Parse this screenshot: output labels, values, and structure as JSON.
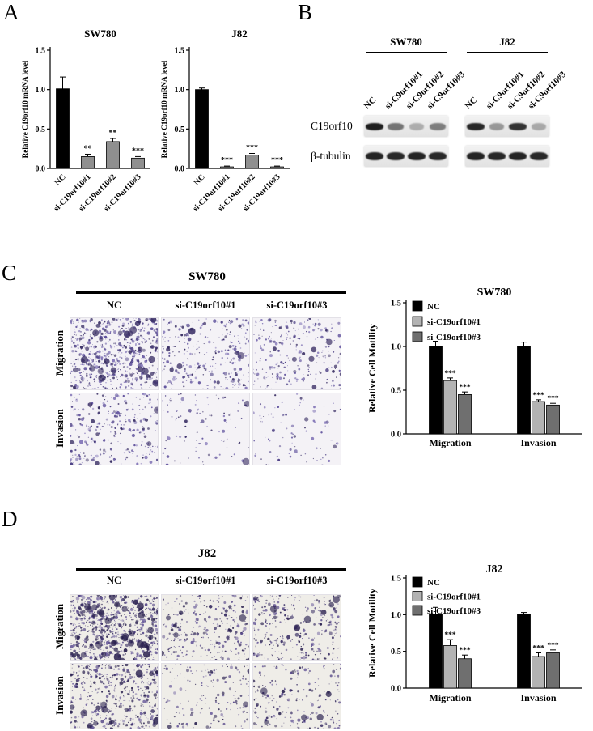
{
  "panels": {
    "A": {
      "label": "A"
    },
    "B": {
      "label": "B",
      "groups": [
        {
          "title": "SW780",
          "lanes": [
            "NC",
            "si-C9orf10#1",
            "si-C9orf10#2",
            "si-C9orf10#3"
          ]
        },
        {
          "title": "J82",
          "lanes": [
            "NC",
            "si-C9orf10#1",
            "si-C9orf10#2",
            "si-C9orf10#3"
          ]
        }
      ],
      "rows": [
        {
          "label": "C19orf10",
          "bands": [
            [
              0.95,
              0.55,
              0.28,
              0.5
            ],
            [
              0.9,
              0.38,
              0.85,
              0.3
            ]
          ]
        },
        {
          "label": "β-tubulin",
          "bands": [
            [
              0.92,
              0.9,
              0.92,
              0.9
            ],
            [
              0.92,
              0.9,
              0.92,
              0.9
            ]
          ]
        }
      ]
    },
    "C": {
      "label": "C",
      "title": "SW780",
      "columns": [
        "NC",
        "si-C19orf10#1",
        "si-C19orf10#3"
      ],
      "rows": [
        "Migration",
        "Invasion"
      ],
      "stain": {
        "bg": "#f4f2f6",
        "colors": [
          "#473a82",
          "#5d4f9b",
          "#7f72b5",
          "#352a61"
        ]
      },
      "images": [
        {
          "row": "Migration",
          "col": "NC",
          "density": 700,
          "clusters": 30,
          "seed": 11
        },
        {
          "row": "Migration",
          "col": "si-C19orf10#1",
          "density": 300,
          "clusters": 7,
          "seed": 12
        },
        {
          "row": "Migration",
          "col": "si-C19orf10#3",
          "density": 250,
          "clusters": 6,
          "seed": 13
        },
        {
          "row": "Invasion",
          "col": "NC",
          "density": 280,
          "clusters": 7,
          "seed": 14
        },
        {
          "row": "Invasion",
          "col": "si-C19orf10#1",
          "density": 110,
          "clusters": 2,
          "seed": 15
        },
        {
          "row": "Invasion",
          "col": "si-C19orf10#3",
          "density": 100,
          "clusters": 2,
          "seed": 16
        }
      ]
    },
    "D": {
      "label": "D",
      "title": "J82",
      "columns": [
        "NC",
        "si-C19orf10#1",
        "si-C19orf10#3"
      ],
      "rows": [
        "Migration",
        "Invasion"
      ],
      "stain": {
        "bg": "#efede8",
        "colors": [
          "#3c3166",
          "#544587",
          "#6d5f9d",
          "#281f4e"
        ]
      },
      "images": [
        {
          "row": "Migration",
          "col": "NC",
          "density": 820,
          "clusters": 40,
          "seed": 21
        },
        {
          "row": "Migration",
          "col": "si-C19orf10#1",
          "density": 300,
          "clusters": 8,
          "seed": 22
        },
        {
          "row": "Migration",
          "col": "si-C19orf10#3",
          "density": 330,
          "clusters": 8,
          "seed": 23
        },
        {
          "row": "Invasion",
          "col": "NC",
          "density": 520,
          "clusters": 16,
          "seed": 24
        },
        {
          "row": "Invasion",
          "col": "si-C19orf10#1",
          "density": 180,
          "clusters": 4,
          "seed": 25
        },
        {
          "row": "Invasion",
          "col": "si-C19orf10#3",
          "density": 230,
          "clusters": 5,
          "seed": 26
        }
      ]
    }
  },
  "chart_data": [
    {
      "type": "bar",
      "panel": "A",
      "title": "SW780",
      "ylabel": "Relative C19orf10 mRNA level",
      "categories": [
        "NC",
        "si-C19orf10#1",
        "si-C19orf10#2",
        "si-C19orf10#3"
      ],
      "values": [
        1.01,
        0.15,
        0.34,
        0.13
      ],
      "errors": [
        0.15,
        0.03,
        0.04,
        0.02
      ],
      "significance": [
        "",
        "**",
        "**",
        "***"
      ],
      "bar_colors": [
        "#000000",
        "#8f8f8f",
        "#8f8f8f",
        "#8f8f8f"
      ],
      "ylim": [
        0,
        1.5
      ],
      "yticks": [
        0,
        0.5,
        1,
        1.5
      ]
    },
    {
      "type": "bar",
      "panel": "A",
      "title": "J82",
      "ylabel": "Relative C19orf10 mRNA level",
      "categories": [
        "NC",
        "si-C19orf10#1",
        "si-C19orf10#2",
        "si-C19orf10#3"
      ],
      "values": [
        1.0,
        0.02,
        0.17,
        0.02
      ],
      "errors": [
        0.02,
        0.01,
        0.02,
        0.01
      ],
      "significance": [
        "",
        "***",
        "***",
        "***"
      ],
      "bar_colors": [
        "#000000",
        "#8f8f8f",
        "#8f8f8f",
        "#8f8f8f"
      ],
      "ylim": [
        0,
        1.5
      ],
      "yticks": [
        0,
        0.5,
        1,
        1.5
      ]
    },
    {
      "type": "grouped_bar",
      "panel": "C",
      "title": "SW780",
      "ylabel": "Relative Cell Motility",
      "categories": [
        "Migration",
        "Invasion"
      ],
      "series": [
        {
          "name": "NC",
          "color": "#000000",
          "values": [
            1.0,
            1.0
          ],
          "errors": [
            0.06,
            0.05
          ],
          "significance": [
            "",
            ""
          ]
        },
        {
          "name": "si-C19orf10#1",
          "color": "#b3b3b3",
          "values": [
            0.61,
            0.37
          ],
          "errors": [
            0.03,
            0.02
          ],
          "significance": [
            "***",
            "***"
          ]
        },
        {
          "name": "si-C19orf10#3",
          "color": "#6f6f6f",
          "values": [
            0.45,
            0.33
          ],
          "errors": [
            0.03,
            0.02
          ],
          "significance": [
            "***",
            "***"
          ]
        }
      ],
      "ylim": [
        0,
        1.5
      ],
      "yticks": [
        0,
        0.5,
        1,
        1.5
      ]
    },
    {
      "type": "grouped_bar",
      "panel": "D",
      "title": "J82",
      "ylabel": "Relative Cell Motility",
      "categories": [
        "Migration",
        "Invasion"
      ],
      "series": [
        {
          "name": "NC",
          "color": "#000000",
          "values": [
            1.0,
            1.0
          ],
          "errors": [
            0.1,
            0.03
          ],
          "significance": [
            "",
            ""
          ]
        },
        {
          "name": "si-C19orf10#1",
          "color": "#b3b3b3",
          "values": [
            0.58,
            0.43
          ],
          "errors": [
            0.08,
            0.05
          ],
          "significance": [
            "***",
            "***"
          ]
        },
        {
          "name": "si-C19orf10#3",
          "color": "#6f6f6f",
          "values": [
            0.4,
            0.48
          ],
          "errors": [
            0.05,
            0.04
          ],
          "significance": [
            "***",
            "***"
          ]
        }
      ],
      "ylim": [
        0,
        1.5
      ],
      "yticks": [
        0,
        0.5,
        1,
        1.5
      ]
    }
  ]
}
